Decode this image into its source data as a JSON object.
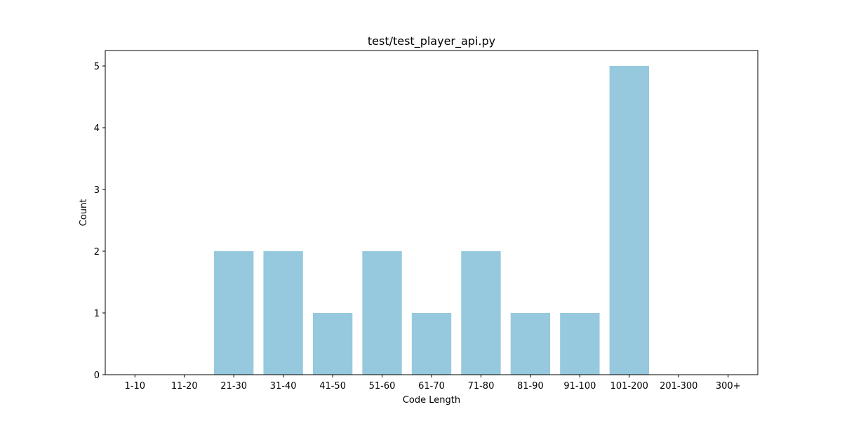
{
  "chart_data": {
    "type": "bar",
    "title": "test/test_player_api.py",
    "xlabel": "Code Length",
    "ylabel": "Count",
    "categories": [
      "1-10",
      "11-20",
      "21-30",
      "31-40",
      "41-50",
      "51-60",
      "61-70",
      "71-80",
      "81-90",
      "91-100",
      "101-200",
      "201-300",
      "300+"
    ],
    "values": [
      0,
      0,
      2,
      2,
      1,
      2,
      1,
      2,
      1,
      1,
      5,
      0,
      0
    ],
    "yticks": [
      "0",
      "1",
      "2",
      "3",
      "4",
      "5"
    ],
    "ylim": [
      0,
      5.25
    ],
    "grid": false,
    "bar_color": "#96c9dd"
  }
}
